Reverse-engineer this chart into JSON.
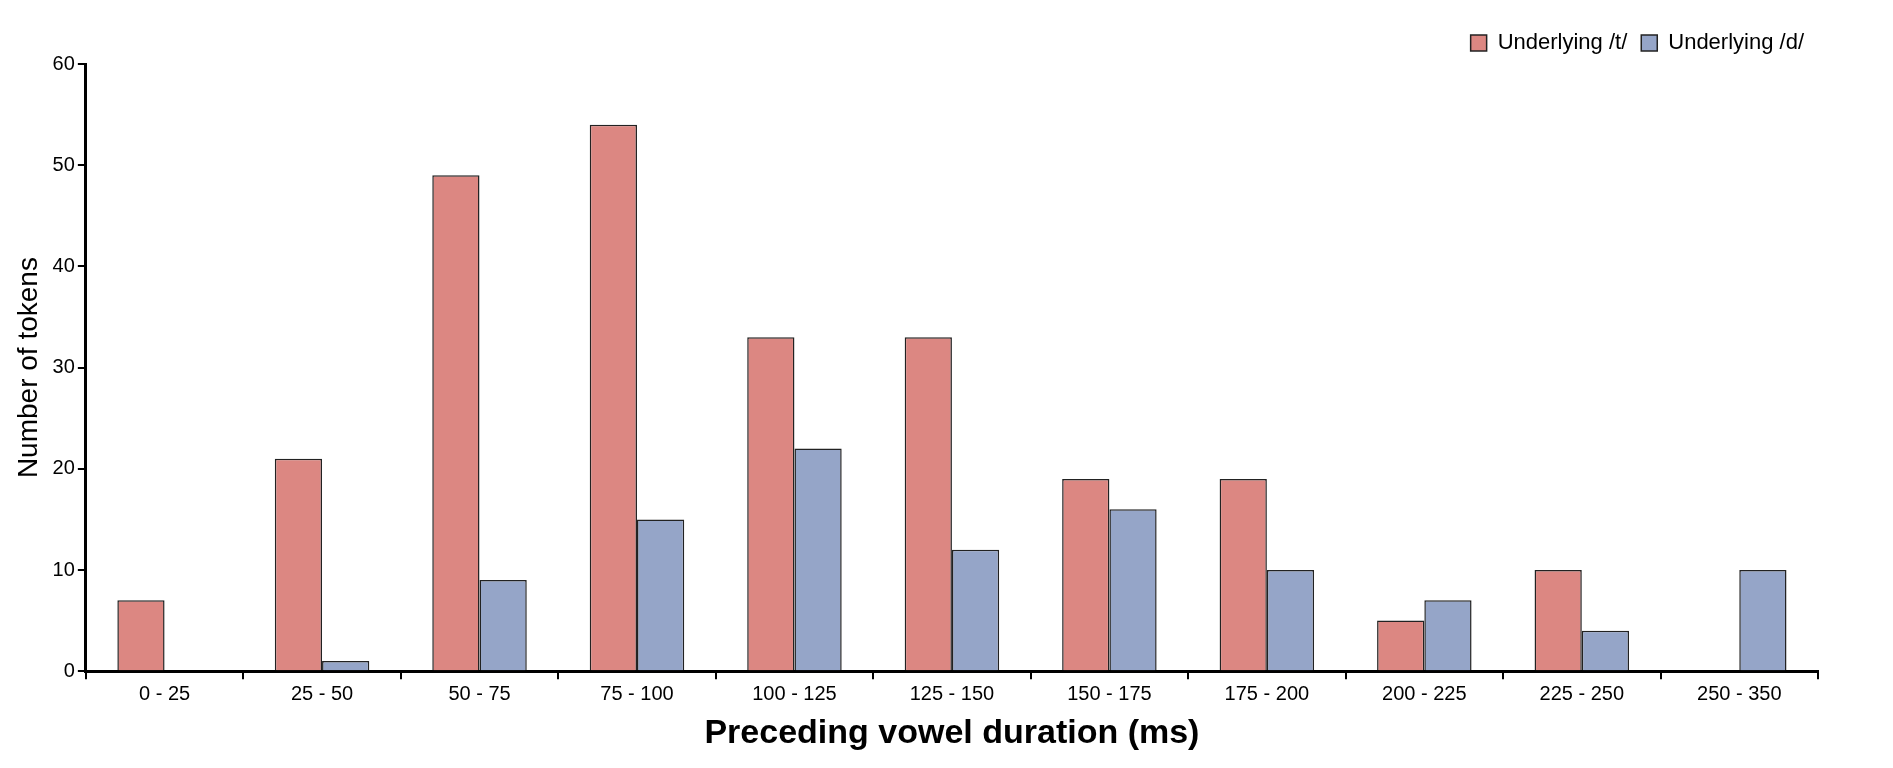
{
  "chart_data": {
    "type": "bar",
    "xlabel": "Preceding vowel duration (ms)",
    "ylabel": "Number of tokens",
    "categories": [
      "0 - 25",
      "25 - 50",
      "50 - 75",
      "75 - 100",
      "100 - 125",
      "125 - 150",
      "150 - 175",
      "175 - 200",
      "200 - 225",
      "225 - 250",
      "250 - 350"
    ],
    "series": [
      {
        "name": "Underlying /t/",
        "color": "#dc8782",
        "values": [
          7,
          21,
          49,
          54,
          33,
          33,
          19,
          19,
          5,
          10,
          0
        ]
      },
      {
        "name": "Underlying /d/",
        "color": "#95a5c8",
        "values": [
          0,
          1,
          9,
          15,
          22,
          12,
          16,
          10,
          7,
          4,
          10
        ]
      }
    ],
    "ylim": [
      0,
      60
    ],
    "yticks": [
      0,
      10,
      20,
      30,
      40,
      50,
      60
    ],
    "grid": false,
    "legend": "top right"
  }
}
